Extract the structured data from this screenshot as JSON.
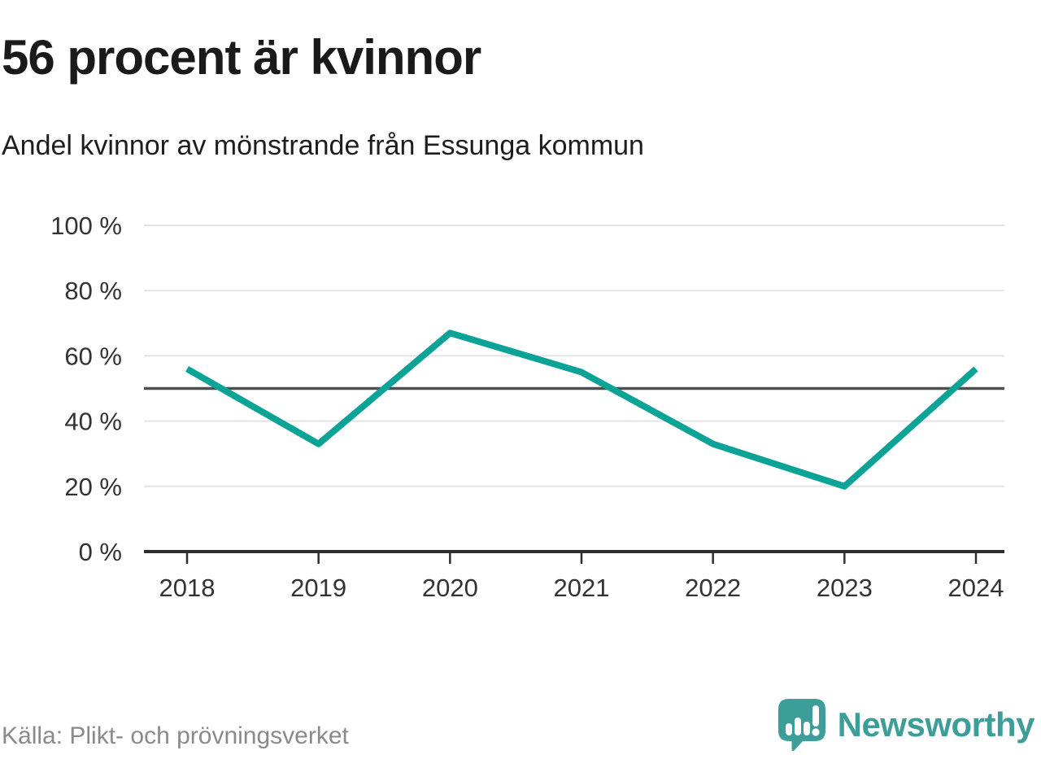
{
  "header": {
    "title": "56 procent är kvinnor",
    "subtitle": "Andel kvinnor av mönstrande från Essunga kommun"
  },
  "footer": {
    "source": "Källa: Plikt- och prövningsverket",
    "brand": "Newsworthy"
  },
  "chart_data": {
    "type": "line",
    "title": "56 procent är kvinnor",
    "subtitle": "Andel kvinnor av mönstrande från Essunga kommun",
    "categories": [
      "2018",
      "2019",
      "2020",
      "2021",
      "2022",
      "2023",
      "2024"
    ],
    "values": [
      56,
      33,
      67,
      55,
      33,
      20,
      56
    ],
    "unit": "%",
    "xlabel": "",
    "ylabel": "",
    "ylim": [
      0,
      100
    ],
    "y_ticks": [
      {
        "value": 0,
        "label": "0 %"
      },
      {
        "value": 20,
        "label": "20 %"
      },
      {
        "value": 40,
        "label": "40 %"
      },
      {
        "value": 60,
        "label": "60 %"
      },
      {
        "value": 80,
        "label": "80 %"
      },
      {
        "value": 100,
        "label": "100 %"
      }
    ],
    "reference_line": 50,
    "grid": true,
    "legend": "none",
    "colors": {
      "line": "#0aa396",
      "grid": "#e3e3e3",
      "reference": "#4f4f4f",
      "axis": "#2e2e2e",
      "tick_text": "#333333",
      "logo": "#3d9e99"
    }
  }
}
